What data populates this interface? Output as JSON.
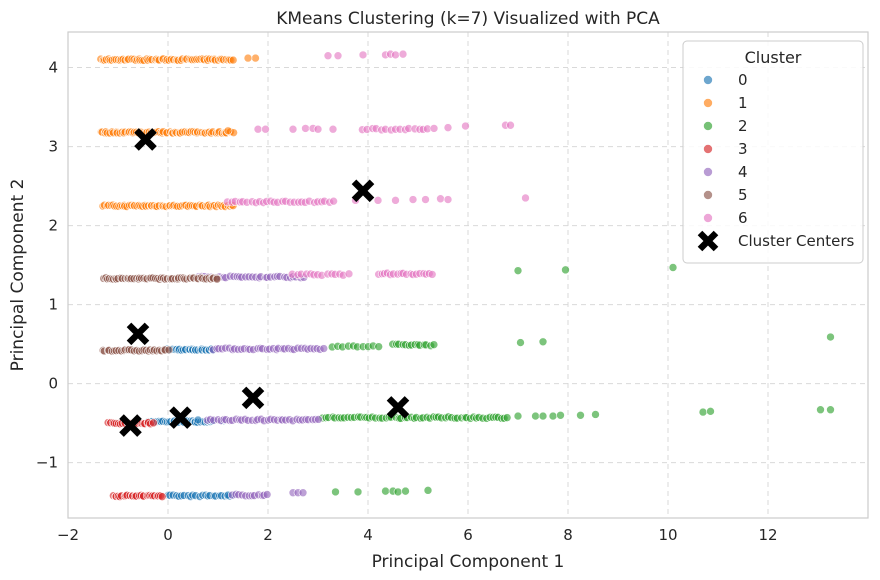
{
  "chart_data": {
    "type": "scatter",
    "title": "KMeans Clustering (k=7) Visualized with PCA",
    "xlabel": "Principal Component 1",
    "ylabel": "Principal Component 2",
    "xlim": [
      -2,
      14
    ],
    "ylim": [
      -1.7,
      4.45
    ],
    "xticks": [
      -2,
      0,
      2,
      4,
      6,
      8,
      10,
      12
    ],
    "yticks": [
      -1,
      0,
      1,
      2,
      3,
      4
    ],
    "grid": true,
    "legend": {
      "title": "Cluster",
      "placement": "top-right",
      "entries": [
        "0",
        "1",
        "2",
        "3",
        "4",
        "5",
        "6",
        "Cluster Centers"
      ]
    },
    "colors": {
      "0": "#1f77b4",
      "1": "#ff7f0e",
      "2": "#2ca02c",
      "3": "#d62728",
      "4": "#9467bd",
      "5": "#8c564b",
      "6": "#e377c2",
      "centers": "#000000"
    },
    "series": [
      {
        "name": "0",
        "segments": [
          {
            "y": 0.43,
            "x_from": 0.0,
            "x_to": 0.9,
            "n": 28
          },
          {
            "y": -0.48,
            "x_from": -0.4,
            "x_to": 0.9,
            "n": 32
          },
          {
            "y": -1.42,
            "x_from": 0.0,
            "x_to": 1.3,
            "n": 24
          }
        ],
        "points": [
          [
            0.6,
            -0.46
          ],
          [
            1.1,
            -0.47
          ],
          [
            1.2,
            -1.41
          ]
        ]
      },
      {
        "name": "1",
        "segments": [
          {
            "y": 4.1,
            "x_from": -1.35,
            "x_to": 1.3,
            "n": 70
          },
          {
            "y": 3.18,
            "x_from": -1.35,
            "x_to": 1.3,
            "n": 70
          },
          {
            "y": 2.25,
            "x_from": -1.3,
            "x_to": 1.3,
            "n": 70
          }
        ],
        "points": [
          [
            1.75,
            4.12
          ],
          [
            1.6,
            4.12
          ],
          [
            1.2,
            3.2
          ]
        ]
      },
      {
        "name": "2",
        "segments": [
          {
            "y": -0.43,
            "x_from": 3.1,
            "x_to": 6.8,
            "n": 60
          },
          {
            "y": 0.47,
            "x_from": 3.3,
            "x_to": 4.2,
            "n": 10
          },
          {
            "y": 0.49,
            "x_from": 4.5,
            "x_to": 5.3,
            "n": 14
          }
        ],
        "points": [
          [
            7.0,
            -0.41
          ],
          [
            7.35,
            -0.41
          ],
          [
            7.5,
            -0.41
          ],
          [
            7.7,
            -0.41
          ],
          [
            7.85,
            -0.4
          ],
          [
            8.25,
            -0.4
          ],
          [
            8.55,
            -0.39
          ],
          [
            10.7,
            -0.36
          ],
          [
            10.85,
            -0.35
          ],
          [
            13.05,
            -0.33
          ],
          [
            13.25,
            -0.33
          ],
          [
            7.0,
            1.43
          ],
          [
            7.95,
            1.44
          ],
          [
            10.1,
            1.47
          ],
          [
            13.25,
            0.59
          ],
          [
            7.05,
            0.52
          ],
          [
            7.5,
            0.53
          ],
          [
            3.35,
            -1.37
          ],
          [
            3.8,
            -1.37
          ],
          [
            4.35,
            -1.36
          ],
          [
            4.5,
            -1.36
          ],
          [
            4.6,
            -1.37
          ],
          [
            4.75,
            -1.36
          ],
          [
            5.2,
            -1.35
          ]
        ]
      },
      {
        "name": "3",
        "segments": [
          {
            "y": -0.5,
            "x_from": -1.2,
            "x_to": -0.3,
            "n": 26
          },
          {
            "y": -1.42,
            "x_from": -1.1,
            "x_to": -0.1,
            "n": 28
          }
        ],
        "points": []
      },
      {
        "name": "4",
        "segments": [
          {
            "y": 1.35,
            "x_from": 0.6,
            "x_to": 2.7,
            "n": 34
          },
          {
            "y": 0.44,
            "x_from": 0.9,
            "x_to": 3.1,
            "n": 36
          },
          {
            "y": -0.46,
            "x_from": 0.8,
            "x_to": 3.0,
            "n": 36
          },
          {
            "y": -1.41,
            "x_from": 1.3,
            "x_to": 2.0,
            "n": 12
          }
        ],
        "points": [
          [
            2.5,
            -1.38
          ],
          [
            2.6,
            -1.38
          ],
          [
            2.7,
            -1.38
          ]
        ]
      },
      {
        "name": "5",
        "segments": [
          {
            "y": 1.33,
            "x_from": -1.3,
            "x_to": 1.0,
            "n": 60
          },
          {
            "y": 0.42,
            "x_from": -1.3,
            "x_to": 0.0,
            "n": 30
          }
        ],
        "points": []
      },
      {
        "name": "6",
        "segments": [
          {
            "y": 3.22,
            "x_from": 3.9,
            "x_to": 5.3,
            "n": 16
          },
          {
            "y": 2.3,
            "x_from": 1.2,
            "x_to": 3.3,
            "n": 28
          },
          {
            "y": 1.38,
            "x_from": 2.5,
            "x_to": 3.6,
            "n": 14
          },
          {
            "y": 1.39,
            "x_from": 4.2,
            "x_to": 5.3,
            "n": 18
          }
        ],
        "points": [
          [
            3.2,
            4.15
          ],
          [
            3.4,
            4.15
          ],
          [
            3.9,
            4.16
          ],
          [
            4.35,
            4.16
          ],
          [
            4.45,
            4.17
          ],
          [
            4.55,
            4.16
          ],
          [
            4.7,
            4.17
          ],
          [
            1.8,
            3.22
          ],
          [
            1.95,
            3.22
          ],
          [
            2.5,
            3.22
          ],
          [
            2.75,
            3.23
          ],
          [
            2.9,
            3.23
          ],
          [
            3.0,
            3.22
          ],
          [
            3.3,
            3.22
          ],
          [
            5.6,
            3.24
          ],
          [
            5.95,
            3.26
          ],
          [
            6.75,
            3.27
          ],
          [
            6.85,
            3.27
          ],
          [
            3.75,
            2.32
          ],
          [
            4.2,
            2.32
          ],
          [
            4.55,
            2.32
          ],
          [
            4.9,
            2.33
          ],
          [
            5.15,
            2.33
          ],
          [
            5.45,
            2.34
          ],
          [
            5.6,
            2.33
          ],
          [
            7.15,
            2.35
          ]
        ]
      }
    ],
    "centers": [
      {
        "x": -0.45,
        "y": 3.09
      },
      {
        "x": 3.9,
        "y": 2.44
      },
      {
        "x": -0.6,
        "y": 0.63
      },
      {
        "x": -0.75,
        "y": -0.53
      },
      {
        "x": 0.25,
        "y": -0.43
      },
      {
        "x": 1.7,
        "y": -0.18
      },
      {
        "x": 4.6,
        "y": -0.3
      }
    ]
  }
}
